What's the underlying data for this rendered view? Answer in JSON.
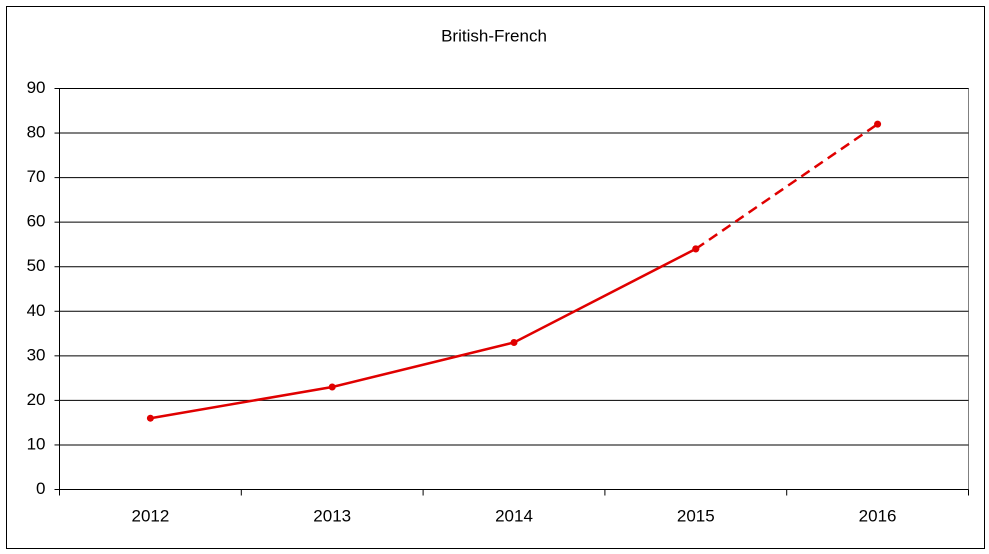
{
  "chart_data": {
    "type": "line",
    "title": "British-French",
    "categories": [
      "2012",
      "2013",
      "2014",
      "2015",
      "2016"
    ],
    "series": [
      {
        "color": "#e00000",
        "line_style": "solid",
        "values": [
          16,
          23,
          33,
          54,
          null
        ]
      },
      {
        "color": "#e00000",
        "line_style": "dashed",
        "values": [
          null,
          null,
          null,
          54,
          82
        ]
      }
    ],
    "ylim": [
      0,
      90
    ],
    "yticks": [
      0,
      10,
      20,
      30,
      40,
      50,
      60,
      70,
      80,
      90
    ],
    "grid": true
  }
}
